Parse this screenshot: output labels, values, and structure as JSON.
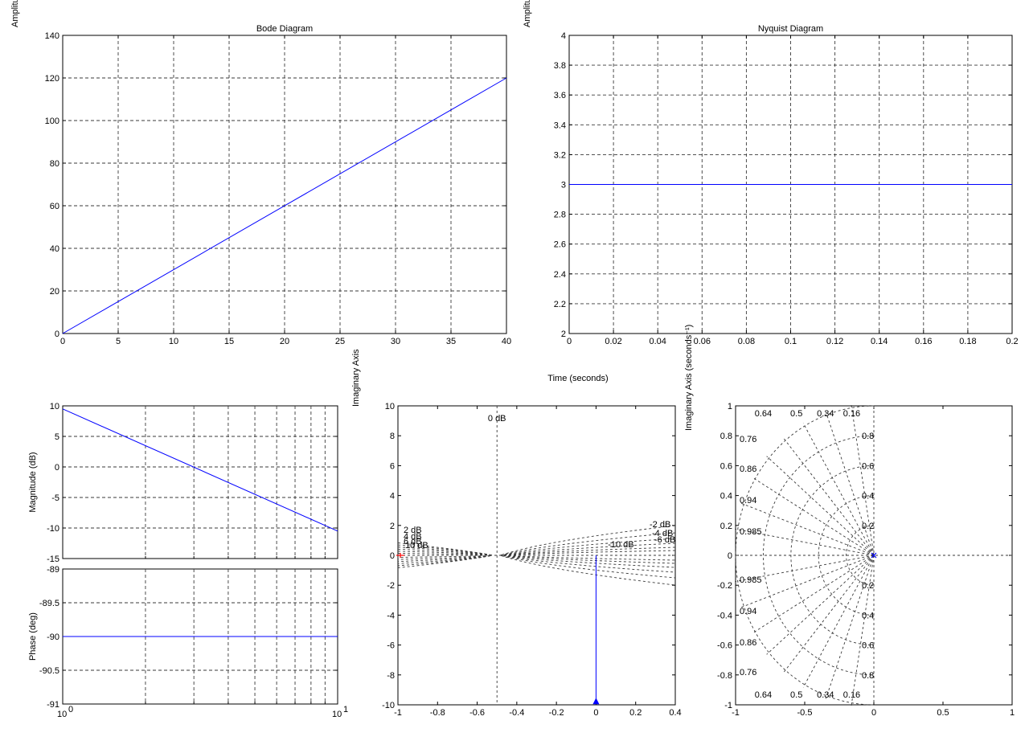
{
  "stray_labels": {
    "top_left_ylabel": "Amplitu",
    "top_right_ylabel": "Amplitu",
    "imag_axis_mid": "Imaginary Axis",
    "time_seconds": "Time (seconds)",
    "imag_axis_seconds": "Imaginary Axis (seconds⁻¹)"
  },
  "colors": {
    "series": "#0000ff",
    "marker_red": "#ff0000",
    "grid": "#3a3a3a"
  },
  "chart_data": [
    {
      "id": "bode_line",
      "type": "line",
      "title": "Bode Diagram",
      "xlim": [
        0,
        40
      ],
      "ylim": [
        0,
        140
      ],
      "xticks": [
        "0",
        "5",
        "10",
        "15",
        "20",
        "25",
        "30",
        "35",
        "40"
      ],
      "yticks": [
        "0",
        "20",
        "40",
        "60",
        "80",
        "100",
        "120",
        "140"
      ],
      "grid": true,
      "series": [
        {
          "x": [
            0,
            40
          ],
          "y": [
            0,
            120
          ]
        }
      ]
    },
    {
      "id": "nyquist_line",
      "type": "line",
      "title": "Nyquist Diagram",
      "xlim": [
        0,
        0.2
      ],
      "ylim": [
        2,
        4
      ],
      "xticks": [
        "0",
        "0.02",
        "0.04",
        "0.06",
        "0.08",
        "0.1",
        "0.12",
        "0.14",
        "0.16",
        "0.18",
        "0.2"
      ],
      "yticks": [
        "2",
        "2.2",
        "2.4",
        "2.6",
        "2.8",
        "3",
        "3.2",
        "3.4",
        "3.6",
        "3.8",
        "4"
      ],
      "grid": true,
      "series": [
        {
          "x": [
            0,
            0.2
          ],
          "y": [
            3,
            3
          ]
        }
      ]
    },
    {
      "id": "bode_magnitude",
      "type": "line",
      "xscale": "log",
      "ylabel": "Magnitude (dB)",
      "xlim": [
        1,
        10
      ],
      "ylim": [
        -15,
        10
      ],
      "yticks": [
        "10",
        "5",
        "0",
        "-5",
        "-10",
        "-15"
      ],
      "grid": true,
      "series": [
        {
          "x": [
            1,
            10
          ],
          "y": [
            9.5,
            -10.5
          ]
        }
      ]
    },
    {
      "id": "bode_phase",
      "type": "line",
      "xscale": "log",
      "ylabel": "Phase (deg)",
      "xlim": [
        1,
        10
      ],
      "ylim": [
        -91,
        -89
      ],
      "yticks": [
        "-89",
        "-89.5",
        "-90",
        "-90.5",
        "-91"
      ],
      "xtick_labels": [
        {
          "base": "10",
          "exp": "0"
        },
        {
          "base": "10",
          "exp": "1"
        }
      ],
      "grid": true,
      "series": [
        {
          "x": [
            1,
            10
          ],
          "y": [
            -90,
            -90
          ]
        }
      ]
    },
    {
      "id": "nichols_grid",
      "type": "line",
      "xlim": [
        -1,
        0.4
      ],
      "ylim": [
        -10,
        10
      ],
      "xticks": [
        "-1",
        "-0.8",
        "-0.6",
        "-0.4",
        "-0.2",
        "0",
        "0.2",
        "0.4"
      ],
      "yticks": [
        "10",
        "8",
        "6",
        "4",
        "2",
        "0",
        "-2",
        "-4",
        "-6",
        "-8",
        "-10"
      ],
      "grid": false,
      "annotations": [
        "0 dB",
        "2 dB",
        "4 dB",
        "6 dB",
        "10 dB",
        "-2 dB",
        "-4 dB",
        "-6 dB",
        "-10 dB"
      ],
      "series": [
        {
          "x": [
            0,
            0
          ],
          "y": [
            0,
            -9.8
          ]
        }
      ]
    },
    {
      "id": "pole_zero_map",
      "type": "scatter",
      "xlim": [
        -1,
        1
      ],
      "ylim": [
        -1,
        1
      ],
      "xticks": [
        "-1",
        "-0.5",
        "0",
        "0.5",
        "1"
      ],
      "yticks": [
        "1",
        "0.8",
        "0.6",
        "0.4",
        "0.2",
        "0",
        "-0.2",
        "-0.4",
        "-0.6",
        "-0.8",
        "-1"
      ],
      "grid": false,
      "damping_labels": [
        "0.64",
        "0.5",
        "0.34",
        "0.16",
        "0.76",
        "0.86",
        "0.94",
        "0.985"
      ],
      "frequency_labels": [
        "0.8",
        "0.6",
        "0.4",
        "0.2"
      ],
      "series": [
        {
          "x": [
            0
          ],
          "y": [
            0
          ]
        }
      ]
    }
  ]
}
